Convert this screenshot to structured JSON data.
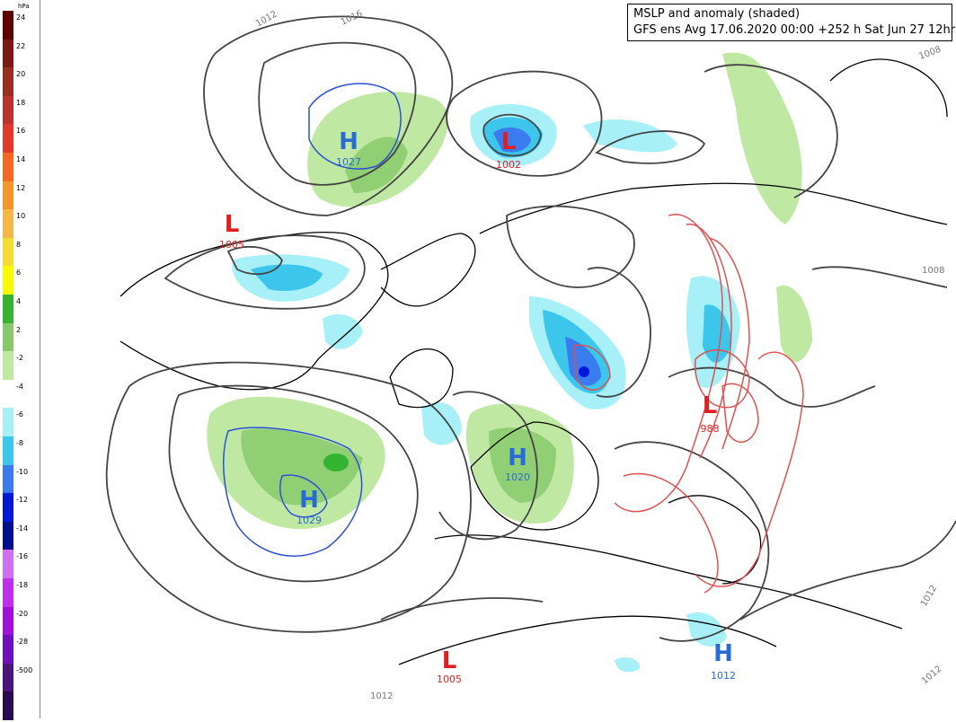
{
  "title": {
    "line1": "MSLP and anomaly (shaded)",
    "line2": "GFS ens Avg 17.06.2020 00:00 +252 h Sat Jun 27 12hrs"
  },
  "colorbar": {
    "unit": "hPa",
    "levels": [
      {
        "label": "24",
        "color": "#5c0000"
      },
      {
        "label": "22",
        "color": "#7a1a12"
      },
      {
        "label": "20",
        "color": "#983022"
      },
      {
        "label": "18",
        "color": "#b8342c"
      },
      {
        "label": "16",
        "color": "#e03a2a"
      },
      {
        "label": "14",
        "color": "#f26a22"
      },
      {
        "label": "12",
        "color": "#f4962e"
      },
      {
        "label": "10",
        "color": "#f6b648"
      },
      {
        "label": "8",
        "color": "#f4dc30"
      },
      {
        "label": "6",
        "color": "#f8f800"
      },
      {
        "label": "4",
        "color": "#34b430"
      },
      {
        "label": "2",
        "color": "#86c86a"
      },
      {
        "label": "-2",
        "color": "#bfe8a2"
      },
      {
        "label": "-4",
        "color": "#ffffff"
      },
      {
        "label": "-6",
        "color": "#a8f0f8"
      },
      {
        "label": "-8",
        "color": "#3cc6ec"
      },
      {
        "label": "-10",
        "color": "#3a7cf0"
      },
      {
        "label": "-12",
        "color": "#0018d8"
      },
      {
        "label": "-14",
        "color": "#00108c"
      },
      {
        "label": "-16",
        "color": "#d070f0"
      },
      {
        "label": "-18",
        "color": "#c030e8"
      },
      {
        "label": "-20",
        "color": "#a010d8"
      },
      {
        "label": "-28",
        "color": "#7010b8"
      },
      {
        "label": "-500",
        "color": "#4a1478"
      },
      {
        "label": "",
        "color": "#2a0a50"
      }
    ]
  },
  "systems": [
    {
      "type": "H",
      "value": "1027",
      "color": "#2a6ad4",
      "id": "high-north-pacific"
    },
    {
      "type": "L",
      "value": "1002",
      "color": "#e02020",
      "id": "low-bering"
    },
    {
      "type": "L",
      "value": "1005",
      "color": "#e02020",
      "id": "low-canada"
    },
    {
      "type": "H",
      "value": "1029",
      "color": "#2a6ad4",
      "id": "high-azores"
    },
    {
      "type": "H",
      "value": "1020",
      "color": "#2a6ad4",
      "id": "high-scandinavia"
    },
    {
      "type": "L",
      "value": "988",
      "color": "#e02020",
      "id": "low-siberia"
    },
    {
      "type": "L",
      "value": "1005",
      "color": "#e02020",
      "id": "low-sahara"
    },
    {
      "type": "H",
      "value": "1012",
      "color": "#2a6ad4",
      "id": "high-arabia"
    }
  ],
  "isobar_labels": [
    "1012",
    "1016",
    "1008",
    "1008",
    "1012",
    "1012",
    "1012"
  ]
}
